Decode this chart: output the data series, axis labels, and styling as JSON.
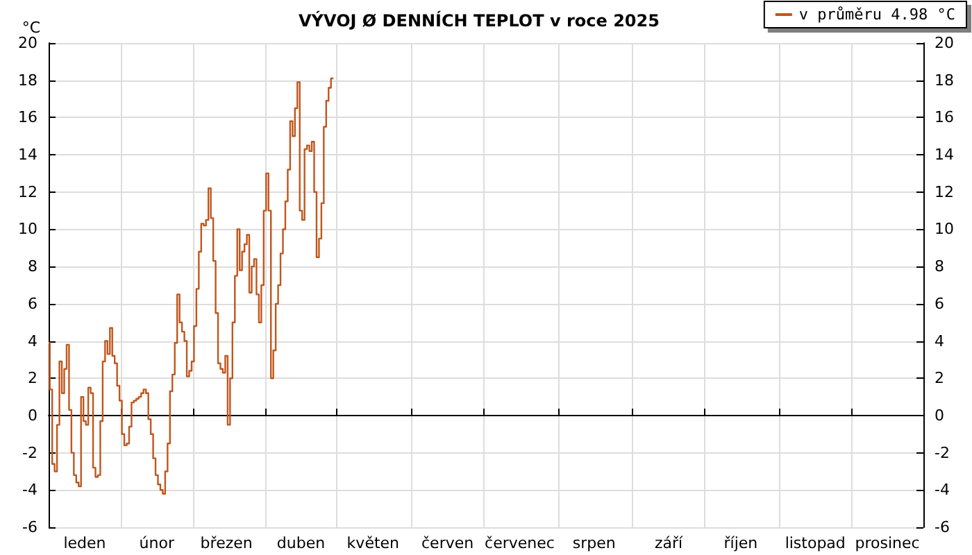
{
  "chart_data": {
    "type": "step",
    "title": "VÝVOJ Ø DENNÍCH TEPLOT v roce 2025",
    "ylabel": "°C",
    "categories": [
      null,
      null,
      null,
      null,
      null,
      null,
      null,
      null,
      null,
      null,
      null,
      null,
      null,
      null,
      null,
      "leden",
      null,
      null,
      null,
      null,
      null,
      null,
      null,
      null,
      null,
      null,
      null,
      null,
      null,
      null,
      null,
      null,
      null,
      null,
      null,
      null,
      null,
      null,
      null,
      null,
      null,
      null,
      null,
      null,
      null,
      "únor",
      null,
      null,
      null,
      null,
      null,
      null,
      null,
      null,
      null,
      null,
      null,
      null,
      null,
      null,
      null,
      null,
      null,
      null,
      null,
      null,
      null,
      null,
      null,
      null,
      null,
      null,
      null,
      null,
      "březen",
      null,
      null,
      null,
      null,
      null,
      null,
      null,
      null,
      null,
      null,
      null,
      null,
      null,
      null,
      null,
      null,
      null,
      null,
      null,
      null,
      null,
      null,
      null,
      null,
      null,
      null,
      null,
      null,
      null,
      null,
      "duben",
      null,
      null,
      null,
      null,
      null,
      null,
      null,
      null,
      null,
      null,
      null,
      null,
      null,
      null,
      null,
      null,
      null,
      null,
      null,
      null,
      null,
      null,
      null,
      null,
      null,
      null,
      null,
      null,
      null,
      "květen",
      null,
      null,
      null,
      null,
      null,
      null,
      null,
      null,
      null,
      null,
      null,
      null,
      null,
      null,
      null,
      null,
      null,
      null,
      null,
      null,
      null,
      null,
      null,
      null,
      null,
      null,
      null,
      null,
      null,
      null,
      "červen",
      null,
      null,
      null,
      null,
      null,
      null,
      null,
      null,
      null,
      null,
      null,
      null,
      null,
      null,
      null,
      null,
      null,
      null,
      null,
      null,
      null,
      null,
      null,
      null,
      null,
      null,
      null,
      null,
      null,
      "červenec",
      null,
      null,
      null,
      null,
      null,
      null,
      null,
      null,
      null,
      null,
      null,
      null,
      null,
      null,
      null,
      null,
      null,
      null,
      null,
      null,
      null,
      null,
      null,
      null,
      null,
      null,
      null,
      null,
      null,
      null,
      "srpen",
      null,
      null,
      null,
      null,
      null,
      null,
      null,
      null,
      null,
      null,
      null,
      null,
      null,
      null,
      null,
      null,
      null,
      null,
      null,
      null,
      null,
      null,
      null,
      null,
      null,
      null,
      null,
      null,
      null,
      null,
      "září",
      null,
      null,
      null,
      null,
      null,
      null,
      null,
      null,
      null,
      null,
      null,
      null,
      null,
      null,
      null,
      null,
      null,
      null,
      null,
      null,
      null,
      null,
      null,
      null,
      null,
      null,
      null,
      null,
      null,
      "říjen",
      null,
      null,
      null,
      null,
      null,
      null,
      null,
      null,
      null,
      null,
      null,
      null,
      null,
      null,
      null,
      null,
      null,
      null,
      null,
      null,
      null,
      null,
      null,
      null,
      null,
      null,
      null,
      null,
      null,
      null,
      "listopad",
      null,
      null,
      null,
      null,
      null,
      null,
      null,
      null,
      null,
      null,
      null,
      null,
      null,
      null,
      null,
      null,
      null,
      null,
      null,
      null,
      null,
      null,
      null,
      null,
      null,
      null,
      null,
      null,
      null,
      "prosinec",
      null,
      null,
      null,
      null,
      null,
      null,
      null,
      null,
      null,
      null,
      null,
      null,
      null,
      null,
      null
    ],
    "ylim": [
      -6,
      20
    ],
    "yticks": [
      -6,
      -4,
      -2,
      0,
      2,
      4,
      6,
      8,
      10,
      12,
      14,
      16,
      18,
      20
    ],
    "y2lim": [
      -6,
      20
    ],
    "y2ticks": [
      -6,
      -4,
      -2,
      0,
      2,
      4,
      6,
      8,
      10,
      12,
      14,
      16,
      18,
      20
    ],
    "grid": true,
    "legend": "top right",
    "marker": "none",
    "line_style": "solid",
    "ref_lines": [
      {
        "axis": "y",
        "value": 0,
        "label": null,
        "color": "#000000"
      }
    ],
    "series": [
      {
        "name": "v průměru 4.98 °C",
        "color": "#c0561c",
        "values": [
          3.9,
          1.4,
          -2.6,
          -3,
          -0.5,
          2.9,
          1.2,
          2.5,
          3.8,
          0.3,
          -2,
          -3.2,
          -3.6,
          -3.8,
          1,
          -0.3,
          -0.5,
          1.5,
          1.2,
          -2.8,
          -3.3,
          -3.2,
          -0.3,
          2.9,
          4,
          3.3,
          4.7,
          3.2,
          2.8,
          1.6,
          0.8,
          -1,
          -1.6,
          -1.5,
          -0.6,
          0.7,
          0.8,
          0.9,
          1,
          1.2,
          1.4,
          1.2,
          -0.2,
          -1,
          -2.3,
          -3.2,
          -3.7,
          -4,
          -4.2,
          -3,
          -1.5,
          1.3,
          2.2,
          3.9,
          6.5,
          5,
          4.5,
          4,
          2.1,
          2.4,
          2.9,
          4.8,
          6.8,
          8.8,
          10.3,
          10.2,
          10.5,
          12.2,
          10.6,
          8.3,
          5.5,
          2.8,
          2.5,
          2.3,
          3.2,
          -0.5,
          2,
          5,
          7.5,
          10,
          7.8,
          8.8,
          9.2,
          9.7,
          6.6,
          8,
          8.4,
          6.5,
          5,
          7,
          11,
          13,
          11,
          2,
          3.5,
          6,
          7,
          8.7,
          10,
          11.5,
          13.2,
          15.8,
          15,
          16.5,
          17.9,
          11,
          10.5,
          14.3,
          14.5,
          14.2,
          14.7,
          12,
          8.5,
          9.5,
          11.4,
          15.5,
          16.9,
          17.6,
          18.1,
          null,
          null,
          null,
          null,
          null,
          null,
          null,
          null,
          null,
          null,
          null,
          null,
          null,
          null,
          null,
          null,
          null,
          null,
          null,
          null,
          null,
          null,
          null,
          null,
          null,
          null,
          null,
          null,
          null,
          null,
          null,
          null,
          null,
          null,
          null,
          null,
          null,
          null,
          null,
          null,
          null,
          null,
          null,
          null,
          null,
          null,
          null,
          null,
          null,
          null,
          null,
          null,
          null,
          null,
          null,
          null,
          null,
          null,
          null,
          null,
          null,
          null,
          null,
          null,
          null,
          null,
          null,
          null,
          null,
          null,
          null,
          null,
          null,
          null,
          null,
          null,
          null,
          null,
          null,
          null,
          null,
          null,
          null,
          null,
          null,
          null,
          null,
          null,
          null,
          null,
          null,
          null,
          null,
          null,
          null,
          null,
          null,
          null,
          null,
          null,
          null,
          null,
          null,
          null,
          null,
          null,
          null,
          null,
          null,
          null,
          null,
          null,
          null,
          null,
          null,
          null,
          null,
          null,
          null,
          null,
          null,
          null,
          null,
          null,
          null,
          null,
          null,
          null,
          null,
          null,
          null,
          null,
          null,
          null,
          null,
          null,
          null,
          null,
          null,
          null,
          null,
          null,
          null,
          null,
          null,
          null,
          null,
          null,
          null,
          null,
          null,
          null,
          null,
          null,
          null,
          null,
          null,
          null,
          null,
          null,
          null,
          null,
          null,
          null,
          null,
          null,
          null,
          null,
          null,
          null,
          null,
          null,
          null,
          null,
          null,
          null,
          null,
          null,
          null,
          null,
          null,
          null,
          null,
          null,
          null,
          null,
          null,
          null,
          null,
          null,
          null,
          null,
          null,
          null,
          null,
          null,
          null,
          null,
          null,
          null,
          null,
          null,
          null,
          null,
          null,
          null,
          null,
          null,
          null,
          null,
          null,
          null,
          null,
          null,
          null,
          null,
          null,
          null,
          null,
          null,
          null,
          null,
          null,
          null,
          null,
          null,
          null,
          null,
          null,
          null,
          null,
          null,
          null,
          null,
          null,
          null,
          null,
          null,
          null,
          null,
          null,
          null,
          null,
          null,
          null,
          null
        ]
      }
    ]
  }
}
